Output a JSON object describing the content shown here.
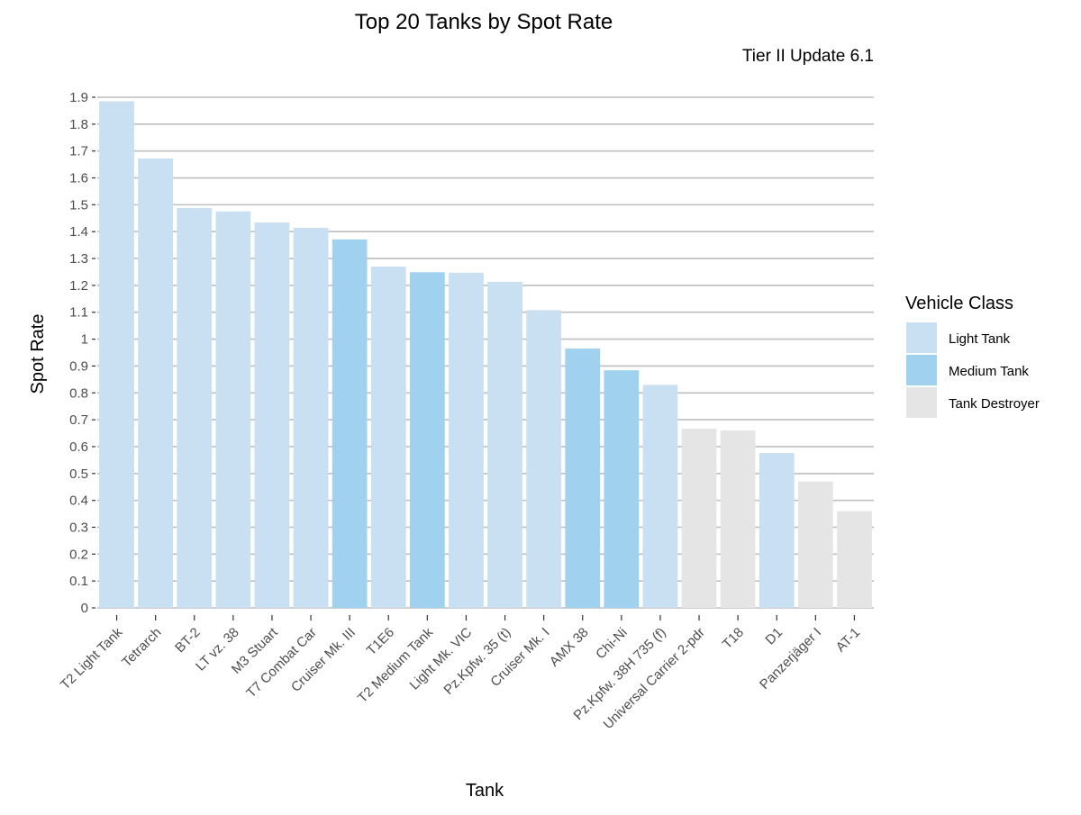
{
  "chart_data": {
    "type": "bar",
    "title": "Top 20 Tanks by Spot Rate",
    "subtitle": "Tier II Update 6.1",
    "xlabel": "Tank",
    "ylabel": "Spot Rate",
    "ylim": [
      0,
      1.9
    ],
    "yticks": [
      "0",
      "0.1",
      "0.2",
      "0.3",
      "0.4",
      "0.5",
      "0.6",
      "0.7",
      "0.8",
      "0.9",
      "1",
      "1.1",
      "1.2",
      "1.3",
      "1.4",
      "1.5",
      "1.6",
      "1.7",
      "1.8",
      "1.9"
    ],
    "ytick_values": [
      0,
      0.1,
      0.2,
      0.3,
      0.4,
      0.5,
      0.6,
      0.7,
      0.8,
      0.9,
      1,
      1.1,
      1.2,
      1.3,
      1.4,
      1.5,
      1.6,
      1.7,
      1.8,
      1.9
    ],
    "grid": "horizontal",
    "legend_placement": "right",
    "legend": {
      "title": "Vehicle Class",
      "entries": [
        {
          "label": "Light Tank",
          "color": "#c9dff2"
        },
        {
          "label": "Medium Tank",
          "color": "#a0d1ef"
        },
        {
          "label": "Tank Destroyer",
          "color": "#e5e5e5"
        }
      ]
    },
    "categories": [
      "T2 Light Tank",
      "Tetrarch",
      "BT-2",
      "LT vz. 38",
      "M3 Stuart",
      "T7 Combat Car",
      "Cruiser Mk. III",
      "T1E6",
      "T2 Medium Tank",
      "Light Mk. VIC",
      "Pz.Kpfw. 35 (t)",
      "Cruiser Mk. I",
      "AMX 38",
      "Chi-Ni",
      "Pz.Kpfw. 38H 735 (f)",
      "Universal Carrier 2-pdr",
      "T18",
      "D1",
      "Panzerjäger I",
      "AT-1"
    ],
    "values": [
      1.885,
      1.672,
      1.488,
      1.475,
      1.434,
      1.414,
      1.371,
      1.27,
      1.249,
      1.247,
      1.213,
      1.108,
      0.965,
      0.884,
      0.83,
      0.667,
      0.66,
      0.576,
      0.47,
      0.36
    ],
    "classes": [
      "Light Tank",
      "Light Tank",
      "Light Tank",
      "Light Tank",
      "Light Tank",
      "Light Tank",
      "Medium Tank",
      "Light Tank",
      "Medium Tank",
      "Light Tank",
      "Light Tank",
      "Light Tank",
      "Medium Tank",
      "Medium Tank",
      "Light Tank",
      "Tank Destroyer",
      "Tank Destroyer",
      "Light Tank",
      "Tank Destroyer",
      "Tank Destroyer"
    ]
  }
}
